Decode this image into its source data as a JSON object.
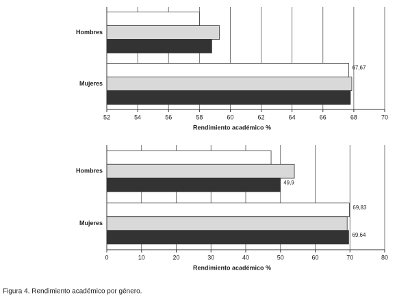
{
  "chart_data": [
    {
      "type": "barh",
      "xlabel": "Rendimiento académico %",
      "categories": [
        "Hombres",
        "Mujeres"
      ],
      "series": [
        {
          "color": "#ffffff",
          "values": [
            58.0,
            67.67
          ],
          "value_labels": [
            null,
            "67,67"
          ]
        },
        {
          "color": "#d9d9d9",
          "values": [
            59.3,
            67.87
          ],
          "value_labels": [
            null,
            null
          ]
        },
        {
          "color": "#333333",
          "values": [
            58.8,
            67.78
          ],
          "value_labels": [
            null,
            null
          ]
        }
      ],
      "xlim": [
        52,
        70
      ],
      "xticks": [
        52,
        54,
        56,
        58,
        60,
        62,
        64,
        66,
        68,
        70
      ],
      "grid": true
    },
    {
      "type": "barh",
      "xlabel": "Rendimiento académico %",
      "categories": [
        "Hombres",
        "Mujeres"
      ],
      "series": [
        {
          "color": "#ffffff",
          "values": [
            47.3,
            69.83
          ],
          "value_labels": [
            null,
            "69,83"
          ]
        },
        {
          "color": "#d9d9d9",
          "values": [
            54.0,
            69.2
          ],
          "value_labels": [
            null,
            null
          ]
        },
        {
          "color": "#333333",
          "values": [
            49.9,
            69.64
          ],
          "value_labels": [
            "49,9",
            "69,64"
          ]
        }
      ],
      "xlim": [
        0,
        80
      ],
      "xticks": [
        0,
        10,
        20,
        30,
        40,
        50,
        60,
        70,
        80
      ],
      "grid": true
    }
  ],
  "caption": "Figura 4. Rendimiento académico por género."
}
